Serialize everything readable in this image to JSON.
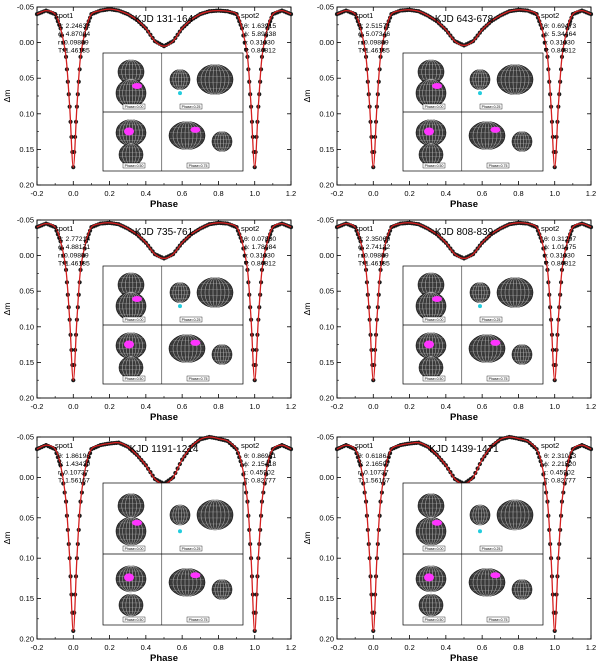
{
  "chart_data": [
    {
      "type": "line",
      "title": "KJD 131-164",
      "xlabel": "Phase",
      "ylabel": "Δm",
      "xlim": [
        -0.2,
        1.2
      ],
      "ylim": [
        0.2,
        -0.05
      ],
      "xticks": [
        "-0.2",
        "0.0",
        "0.2",
        "0.4",
        "0.6",
        "0.8",
        "1.0",
        "1.2"
      ],
      "yticks": [
        "-0.05",
        "0.00",
        "0.05",
        "0.10",
        "0.15",
        "0.20"
      ],
      "grid": false,
      "x": [
        -0.2,
        -0.15,
        -0.1,
        -0.07,
        -0.04,
        -0.02,
        0.0,
        0.02,
        0.04,
        0.07,
        0.1,
        0.15,
        0.2,
        0.25,
        0.3,
        0.35,
        0.4,
        0.45,
        0.5,
        0.55,
        0.6,
        0.65,
        0.7,
        0.75,
        0.8,
        0.85,
        0.9,
        0.93,
        0.96,
        0.98,
        1.0,
        1.02,
        1.04,
        1.07,
        1.1,
        1.15,
        1.2
      ],
      "values": [
        -0.04,
        -0.045,
        -0.04,
        -0.02,
        0.02,
        0.09,
        0.175,
        0.09,
        0.02,
        -0.02,
        -0.04,
        -0.045,
        -0.047,
        -0.045,
        -0.04,
        -0.032,
        -0.02,
        -0.002,
        0.005,
        -0.002,
        -0.02,
        -0.032,
        -0.04,
        -0.044,
        -0.045,
        -0.044,
        -0.04,
        -0.02,
        0.02,
        0.09,
        0.175,
        0.09,
        0.02,
        -0.02,
        -0.04,
        -0.045,
        -0.04
      ],
      "spot1": {
        "label": "spot1",
        "params": [
          "θ: 2.24632",
          "ϕ: 4.87094",
          "r: 0.09879",
          "T: 1.46185"
        ]
      },
      "spot2": {
        "label": "spot2",
        "params": [
          "θ: 1.63915",
          "ϕ: 5.89838",
          "r: 0.31030",
          "T: 0.84812"
        ]
      },
      "phases": [
        "Phase=0.00",
        "Phase=0.25",
        "Phase=0.50",
        "Phase=0.75"
      ]
    },
    {
      "type": "line",
      "title": "KJD 643-678",
      "xlabel": "Phase",
      "ylabel": "Δm",
      "xlim": [
        -0.2,
        1.2
      ],
      "ylim": [
        0.2,
        -0.05
      ],
      "xticks": [
        "-0.2",
        "0.0",
        "0.2",
        "0.4",
        "0.6",
        "0.8",
        "1.0",
        "1.2"
      ],
      "yticks": [
        "-0.05",
        "0.00",
        "0.05",
        "0.10",
        "0.15",
        "0.20"
      ],
      "grid": false,
      "x": [
        -0.2,
        -0.15,
        -0.1,
        -0.07,
        -0.04,
        -0.02,
        0.0,
        0.02,
        0.04,
        0.07,
        0.1,
        0.15,
        0.2,
        0.25,
        0.3,
        0.35,
        0.4,
        0.45,
        0.5,
        0.55,
        0.6,
        0.65,
        0.7,
        0.75,
        0.8,
        0.85,
        0.9,
        0.93,
        0.96,
        0.98,
        1.0,
        1.02,
        1.04,
        1.07,
        1.1,
        1.15,
        1.2
      ],
      "values": [
        -0.04,
        -0.045,
        -0.04,
        -0.02,
        0.02,
        0.09,
        0.175,
        0.09,
        0.02,
        -0.02,
        -0.04,
        -0.045,
        -0.046,
        -0.044,
        -0.038,
        -0.03,
        -0.018,
        -0.002,
        0.004,
        -0.002,
        -0.018,
        -0.03,
        -0.038,
        -0.044,
        -0.046,
        -0.045,
        -0.04,
        -0.02,
        0.02,
        0.09,
        0.175,
        0.09,
        0.02,
        -0.02,
        -0.04,
        -0.045,
        -0.04
      ],
      "spot1": {
        "label": "spot1",
        "params": [
          "θ: 2.51571",
          "ϕ: 5.07346",
          "r: 0.09879",
          "T: 1.46185"
        ]
      },
      "spot2": {
        "label": "spot2",
        "params": [
          "θ: 0.69473",
          "ϕ: 5.34464",
          "r: 0.31030",
          "T: 0.84812"
        ]
      },
      "phases": [
        "Phase=0.00",
        "Phase=0.25",
        "Phase=0.50",
        "Phase=0.75"
      ]
    },
    {
      "type": "line",
      "title": "KJD 735-761",
      "xlabel": "Phase",
      "ylabel": "Δm",
      "xlim": [
        -0.2,
        1.2
      ],
      "ylim": [
        0.2,
        -0.05
      ],
      "xticks": [
        "-0.2",
        "0.0",
        "0.2",
        "0.4",
        "0.6",
        "0.8",
        "1.0",
        "1.2"
      ],
      "yticks": [
        "-0.05",
        "0.00",
        "0.05",
        "0.10",
        "0.15",
        "0.20"
      ],
      "grid": false,
      "x": [
        -0.2,
        -0.15,
        -0.1,
        -0.07,
        -0.04,
        -0.02,
        0.0,
        0.02,
        0.04,
        0.07,
        0.1,
        0.15,
        0.2,
        0.25,
        0.3,
        0.35,
        0.4,
        0.45,
        0.5,
        0.55,
        0.6,
        0.65,
        0.7,
        0.75,
        0.8,
        0.85,
        0.9,
        0.93,
        0.96,
        0.98,
        1.0,
        1.02,
        1.04,
        1.07,
        1.1,
        1.15,
        1.2
      ],
      "values": [
        -0.04,
        -0.045,
        -0.04,
        -0.02,
        0.02,
        0.09,
        0.175,
        0.09,
        0.02,
        -0.02,
        -0.04,
        -0.045,
        -0.046,
        -0.044,
        -0.038,
        -0.03,
        -0.018,
        -0.002,
        0.004,
        -0.002,
        -0.018,
        -0.03,
        -0.038,
        -0.044,
        -0.046,
        -0.045,
        -0.04,
        -0.02,
        0.02,
        0.09,
        0.175,
        0.09,
        0.02,
        -0.02,
        -0.04,
        -0.045,
        -0.04
      ],
      "spot1": {
        "label": "spot1",
        "params": [
          "θ: 2.77214",
          "ϕ: 4.88171",
          "r: 0.09879",
          "T: 1.46185"
        ]
      },
      "spot2": {
        "label": "spot2",
        "params": [
          "θ: 0.07880",
          "ϕ: 1.78084",
          "r: 0.31030",
          "T: 0.84812"
        ]
      },
      "phases": [
        "Phase=0.00",
        "Phase=0.25",
        "Phase=0.50",
        "Phase=0.75"
      ]
    },
    {
      "type": "line",
      "title": "KJD 808-839",
      "xlabel": "Phase",
      "ylabel": "Δm",
      "xlim": [
        -0.2,
        1.2
      ],
      "ylim": [
        0.2,
        -0.05
      ],
      "xticks": [
        "-0.2",
        "0.0",
        "0.2",
        "0.4",
        "0.6",
        "0.8",
        "1.0",
        "1.2"
      ],
      "yticks": [
        "-0.05",
        "0.00",
        "0.05",
        "0.10",
        "0.15",
        "0.20"
      ],
      "grid": false,
      "x": [
        -0.2,
        -0.15,
        -0.1,
        -0.07,
        -0.04,
        -0.02,
        0.0,
        0.02,
        0.04,
        0.07,
        0.1,
        0.15,
        0.2,
        0.25,
        0.3,
        0.35,
        0.4,
        0.45,
        0.5,
        0.55,
        0.6,
        0.65,
        0.7,
        0.75,
        0.8,
        0.85,
        0.9,
        0.93,
        0.96,
        0.98,
        1.0,
        1.02,
        1.04,
        1.07,
        1.1,
        1.15,
        1.2
      ],
      "values": [
        -0.04,
        -0.045,
        -0.04,
        -0.02,
        0.02,
        0.09,
        0.175,
        0.09,
        0.02,
        -0.02,
        -0.04,
        -0.045,
        -0.046,
        -0.044,
        -0.038,
        -0.03,
        -0.018,
        -0.002,
        0.004,
        -0.002,
        -0.018,
        -0.03,
        -0.038,
        -0.044,
        -0.046,
        -0.045,
        -0.04,
        -0.02,
        0.02,
        0.09,
        0.175,
        0.09,
        0.02,
        -0.02,
        -0.04,
        -0.045,
        -0.04
      ],
      "spot1": {
        "label": "spot1",
        "params": [
          "θ: 2.35060",
          "ϕ: 2.74122",
          "r: 0.09879",
          "T: 1.46185"
        ]
      },
      "spot2": {
        "label": "spot2",
        "params": [
          "θ: 0.31297",
          "ϕ: 1.01475",
          "r: 0.31030",
          "T: 0.84812"
        ]
      },
      "phases": [
        "Phase=0.00",
        "Phase=0.25",
        "Phase=0.50",
        "Phase=0.75"
      ]
    },
    {
      "type": "line",
      "title": "KJD 1191-1214",
      "xlabel": "Phase",
      "ylabel": "Δm",
      "xlim": [
        -0.2,
        1.2
      ],
      "ylim": [
        0.2,
        -0.05
      ],
      "xticks": [
        "-0.2",
        "0.0",
        "0.2",
        "0.4",
        "0.6",
        "0.8",
        "1.0",
        "1.2"
      ],
      "yticks": [
        "-0.05",
        "0.00",
        "0.05",
        "0.10",
        "0.15",
        "0.20"
      ],
      "grid": false,
      "x": [
        -0.2,
        -0.15,
        -0.1,
        -0.07,
        -0.04,
        -0.02,
        0.0,
        0.02,
        0.04,
        0.07,
        0.1,
        0.15,
        0.2,
        0.25,
        0.3,
        0.35,
        0.4,
        0.45,
        0.5,
        0.55,
        0.6,
        0.65,
        0.7,
        0.75,
        0.8,
        0.85,
        0.9,
        0.93,
        0.96,
        0.98,
        1.0,
        1.02,
        1.04,
        1.07,
        1.1,
        1.15,
        1.2
      ],
      "values": [
        -0.035,
        -0.04,
        -0.035,
        -0.015,
        0.03,
        0.1,
        0.19,
        0.1,
        0.03,
        -0.015,
        -0.035,
        -0.04,
        -0.042,
        -0.043,
        -0.038,
        -0.028,
        -0.015,
        0.002,
        0.008,
        0.0,
        -0.022,
        -0.038,
        -0.047,
        -0.05,
        -0.048,
        -0.045,
        -0.035,
        -0.015,
        0.03,
        0.1,
        0.19,
        0.1,
        0.03,
        -0.015,
        -0.035,
        -0.04,
        -0.035
      ],
      "spot1": {
        "label": "spot1",
        "params": [
          "θ: 1.86196",
          "ϕ: 1.43439",
          "r: 0.10737",
          "T: 1.56167"
        ]
      },
      "spot2": {
        "label": "spot2",
        "params": [
          "θ: 0.86961",
          "ϕ: 2.15418",
          "r: 0.45902",
          "T: 0.82777"
        ]
      },
      "phases": [
        "Phase=0.00",
        "Phase=0.25",
        "Phase=0.50",
        "Phase=0.75"
      ]
    },
    {
      "type": "line",
      "title": "KJD 1439-1471",
      "xlabel": "Phase",
      "ylabel": "Δm",
      "xlim": [
        -0.2,
        1.2
      ],
      "ylim": [
        0.2,
        -0.05
      ],
      "xticks": [
        "-0.2",
        "0.0",
        "0.2",
        "0.4",
        "0.6",
        "0.8",
        "1.0",
        "1.2"
      ],
      "yticks": [
        "-0.05",
        "0.00",
        "0.05",
        "0.10",
        "0.15",
        "0.20"
      ],
      "grid": false,
      "x": [
        -0.2,
        -0.15,
        -0.1,
        -0.07,
        -0.04,
        -0.02,
        0.0,
        0.02,
        0.04,
        0.07,
        0.1,
        0.15,
        0.2,
        0.25,
        0.3,
        0.35,
        0.4,
        0.45,
        0.5,
        0.55,
        0.6,
        0.65,
        0.7,
        0.75,
        0.8,
        0.85,
        0.9,
        0.93,
        0.96,
        0.98,
        1.0,
        1.02,
        1.04,
        1.07,
        1.1,
        1.15,
        1.2
      ],
      "values": [
        -0.035,
        -0.04,
        -0.035,
        -0.015,
        0.03,
        0.1,
        0.19,
        0.1,
        0.03,
        -0.015,
        -0.035,
        -0.04,
        -0.042,
        -0.043,
        -0.038,
        -0.028,
        -0.015,
        0.002,
        0.008,
        0.0,
        -0.022,
        -0.038,
        -0.047,
        -0.05,
        -0.048,
        -0.045,
        -0.035,
        -0.015,
        0.03,
        0.1,
        0.19,
        0.1,
        0.03,
        -0.015,
        -0.035,
        -0.04,
        -0.035
      ],
      "spot1": {
        "label": "spot1",
        "params": [
          "θ: 0.61861",
          "ϕ: 2.16507",
          "r: 0.10737",
          "T: 1.56167"
        ]
      },
      "spot2": {
        "label": "spot2",
        "params": [
          "θ: 2.31013",
          "ϕ: 2.21520",
          "r: 0.45902",
          "T: 0.82777"
        ]
      },
      "phases": [
        "Phase=0.00",
        "Phase=0.25",
        "Phase=0.50",
        "Phase=0.75"
      ]
    }
  ],
  "colors": {
    "curve": "#d42020",
    "points": "#1a1a1a",
    "spot": "#ff33ff",
    "small_spot": "#22ccdd",
    "star_fill": "#3a3a3a",
    "star_lines": "#c8c8c8"
  }
}
